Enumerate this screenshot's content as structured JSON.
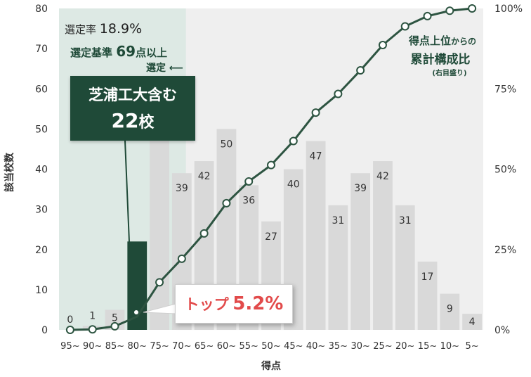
{
  "chart_data": {
    "type": "bar",
    "categories": [
      "95~",
      "90~",
      "85~",
      "80~",
      "75~",
      "70~",
      "65~",
      "60~",
      "55~",
      "50~",
      "45~",
      "40~",
      "35~",
      "30~",
      "25~",
      "20~",
      "15~",
      "10~",
      "5~"
    ],
    "values": [
      0,
      1,
      5,
      22,
      57,
      39,
      42,
      50,
      36,
      27,
      40,
      47,
      31,
      39,
      42,
      31,
      17,
      9,
      4
    ],
    "highlight_index": 3,
    "xlabel": "得点",
    "ylabel": "該当校数",
    "ylim": [
      0,
      80
    ],
    "yticks": [
      "0",
      "10",
      "20",
      "30",
      "40",
      "50",
      "60",
      "70",
      "80"
    ],
    "y2ticks": [
      "0%",
      "25%",
      "50%",
      "75%",
      "100%"
    ],
    "cumulative_series": {
      "name": "得点上位からの累計構成比",
      "values": [
        0.0,
        0.2,
        1.4,
        5.2,
        18.6,
        27.8,
        37.7,
        49.5,
        58.0,
        64.4,
        73.8,
        84.9,
        92.2,
        101.4,
        111.3,
        118.6,
        122.6,
        124.7,
        125.6
      ],
      "y2max_raw": 125.6
    },
    "colors": {
      "bar": "#d9d9d9",
      "highlight_bar": "#1f4a38",
      "line": "#2d5441",
      "plot_bg": "#efefef",
      "selection_bg": "#dde9e4"
    }
  },
  "annotations": {
    "selection_rate_label": "選定率",
    "selection_rate_value": "18.9%",
    "criteria_prefix": "選定基準",
    "criteria_value": "69",
    "criteria_suffix": "点以上",
    "criteria_line2": "選定 ⟵",
    "callout_line1": "芝浦工大含む",
    "callout_value": "22",
    "callout_unit": "校",
    "top_label": "トップ",
    "top_value": "5.2%",
    "cumulative_label_line1a": "得点上位",
    "cumulative_label_line1b": "からの",
    "cumulative_label_line2": "累計構成比",
    "cumulative_label_line3": "(右目盛り)"
  }
}
